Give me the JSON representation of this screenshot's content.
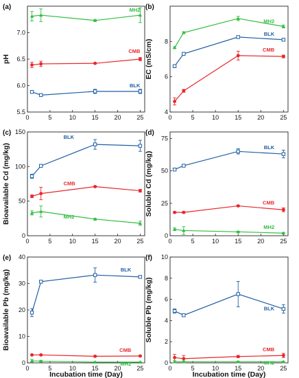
{
  "figure": {
    "x_axis_title": "Incubation time (Day)"
  },
  "chart_data": [
    {
      "panel": "(a)",
      "type": "line",
      "ylabel": "pH",
      "xlim": [
        0,
        26
      ],
      "ylim": [
        5.5,
        7.5
      ],
      "x_ticks": [
        0,
        5,
        10,
        15,
        20,
        25
      ],
      "y_ticks": [
        5.5,
        6.0,
        6.5,
        7.0
      ],
      "y_tick_labels": [
        "5.5",
        "6.0",
        "6.5",
        "7.0"
      ],
      "x": [
        1,
        3,
        15,
        25
      ],
      "series": [
        {
          "name": "MH2",
          "color": "#2ebd3d",
          "marker": "triangle",
          "values": [
            7.31,
            7.33,
            7.23,
            7.33
          ],
          "errors": [
            0.09,
            0.12,
            0.02,
            0.14
          ]
        },
        {
          "name": "CMB",
          "color": "#e8262b",
          "marker": "circle",
          "values": [
            6.39,
            6.41,
            6.42,
            6.5
          ],
          "errors": [
            0.05,
            0.05,
            0.01,
            0.03
          ]
        },
        {
          "name": "BLK",
          "color": "#1f5fa3",
          "marker": "square",
          "values": [
            5.88,
            5.82,
            5.89,
            5.89
          ],
          "errors": [
            0.01,
            0.01,
            0.04,
            0.04
          ]
        }
      ]
    },
    {
      "panel": "(b)",
      "type": "line",
      "ylabel": "EC (mS/cm)",
      "xlim": [
        0,
        26
      ],
      "ylim": [
        4,
        10
      ],
      "x_ticks": [
        0,
        5,
        10,
        15,
        20,
        25
      ],
      "y_ticks": [
        4,
        6,
        8
      ],
      "y_tick_labels": [
        "4",
        "6",
        "8"
      ],
      "x": [
        1,
        3,
        15,
        25
      ],
      "series": [
        {
          "name": "MH2",
          "color": "#2ebd3d",
          "marker": "triangle",
          "values": [
            7.65,
            8.5,
            9.3,
            8.85
          ],
          "errors": [
            0.05,
            0.05,
            0.12,
            0.08
          ]
        },
        {
          "name": "BLK",
          "color": "#1f5fa3",
          "marker": "square",
          "values": [
            6.6,
            7.3,
            8.25,
            8.1
          ],
          "errors": [
            0.08,
            0.05,
            0.03,
            0.03
          ]
        },
        {
          "name": "CMB",
          "color": "#e8262b",
          "marker": "circle",
          "values": [
            4.6,
            5.2,
            7.2,
            7.15
          ],
          "errors": [
            0.2,
            0.08,
            0.25,
            0.08
          ]
        }
      ]
    },
    {
      "panel": "(c)",
      "type": "line",
      "ylabel": "Bioavailable Cd (mg/kg)",
      "xlim": [
        0,
        26
      ],
      "ylim": [
        0,
        150
      ],
      "x_ticks": [
        0,
        5,
        10,
        15,
        20,
        25
      ],
      "y_ticks": [
        0,
        50,
        100,
        150
      ],
      "y_tick_labels": [
        "0",
        "50",
        "100",
        "150"
      ],
      "x": [
        1,
        3,
        15,
        25
      ],
      "series": [
        {
          "name": "BLK",
          "color": "#1f5fa3",
          "marker": "square",
          "values": [
            86,
            101,
            132,
            130
          ],
          "errors": [
            3,
            2,
            7,
            8
          ]
        },
        {
          "name": "CMB",
          "color": "#e8262b",
          "marker": "circle",
          "values": [
            57,
            61,
            71,
            65
          ],
          "errors": [
            2,
            9,
            1,
            2
          ]
        },
        {
          "name": "MH2",
          "color": "#2ebd3d",
          "marker": "triangle",
          "values": [
            33,
            35,
            24,
            18
          ],
          "errors": [
            3,
            8,
            1,
            3
          ]
        }
      ]
    },
    {
      "panel": "(d)",
      "type": "line",
      "ylabel": "Soluble Cd (mg/kg)",
      "xlim": [
        0,
        26
      ],
      "ylim": [
        0,
        80
      ],
      "x_ticks": [
        0,
        5,
        10,
        15,
        20,
        25
      ],
      "y_ticks": [
        0,
        25,
        50,
        75
      ],
      "y_tick_labels": [
        "0",
        "25",
        "50",
        "75"
      ],
      "x": [
        1,
        3,
        15,
        25
      ],
      "series": [
        {
          "name": "BLK",
          "color": "#1f5fa3",
          "marker": "square",
          "values": [
            51,
            54,
            65,
            63
          ],
          "errors": [
            1,
            1,
            2,
            3
          ]
        },
        {
          "name": "CMB",
          "color": "#e8262b",
          "marker": "circle",
          "values": [
            18,
            18,
            23,
            20
          ],
          "errors": [
            0.5,
            0.5,
            0.5,
            1.5
          ]
        },
        {
          "name": "MH2",
          "color": "#2ebd3d",
          "marker": "triangle",
          "values": [
            5,
            4,
            3,
            2
          ],
          "errors": [
            1,
            3,
            0.5,
            0.5
          ]
        }
      ]
    },
    {
      "panel": "(e)",
      "type": "line",
      "ylabel": "Bioavailable Pb (mg/kg)",
      "xlim": [
        0,
        26
      ],
      "ylim": [
        0,
        40
      ],
      "x_ticks": [
        0,
        5,
        10,
        15,
        20,
        25
      ],
      "y_ticks": [
        0,
        10,
        20,
        30,
        40
      ],
      "y_tick_labels": [
        "0",
        "10",
        "20",
        "30",
        "40"
      ],
      "x": [
        1,
        3,
        15,
        25
      ],
      "series": [
        {
          "name": "BLK",
          "color": "#1f5fa3",
          "marker": "square",
          "values": [
            19,
            30.7,
            33.2,
            32.5
          ],
          "errors": [
            1.5,
            0.3,
            2.7,
            0.3
          ]
        },
        {
          "name": "CMB",
          "color": "#e8262b",
          "marker": "circle",
          "values": [
            3,
            3,
            2.5,
            2.6
          ],
          "errors": [
            0.2,
            0.2,
            0.2,
            0.2
          ]
        },
        {
          "name": "MH2",
          "color": "#2ebd3d",
          "marker": "triangle",
          "values": [
            0.8,
            0.6,
            0.3,
            0.3
          ],
          "errors": [
            0.5,
            0.3,
            0.1,
            0.1
          ]
        }
      ]
    },
    {
      "panel": "(f)",
      "type": "line",
      "ylabel": "Soluble Pb (mg/kg)",
      "xlim": [
        0,
        26
      ],
      "ylim": [
        0,
        10
      ],
      "x_ticks": [
        0,
        5,
        10,
        15,
        20,
        25
      ],
      "y_ticks": [
        0,
        2,
        4,
        6,
        8,
        10
      ],
      "y_tick_labels": [
        "0",
        "2",
        "4",
        "6",
        "8",
        "10"
      ],
      "x": [
        1,
        3,
        15,
        25
      ],
      "series": [
        {
          "name": "BLK",
          "color": "#1f5fa3",
          "marker": "square",
          "values": [
            4.9,
            4.5,
            6.5,
            5.1
          ],
          "errors": [
            0.2,
            0.1,
            1.2,
            0.4
          ]
        },
        {
          "name": "CMB",
          "color": "#e8262b",
          "marker": "circle",
          "values": [
            0.5,
            0.4,
            0.6,
            0.7
          ],
          "errors": [
            0.3,
            0.3,
            0.1,
            0.2
          ]
        },
        {
          "name": "MH2",
          "color": "#2ebd3d",
          "marker": "triangle",
          "values": [
            0.1,
            0.1,
            0.1,
            0.1
          ],
          "errors": [
            0.1,
            0.1,
            0.05,
            0.05
          ]
        }
      ]
    }
  ]
}
